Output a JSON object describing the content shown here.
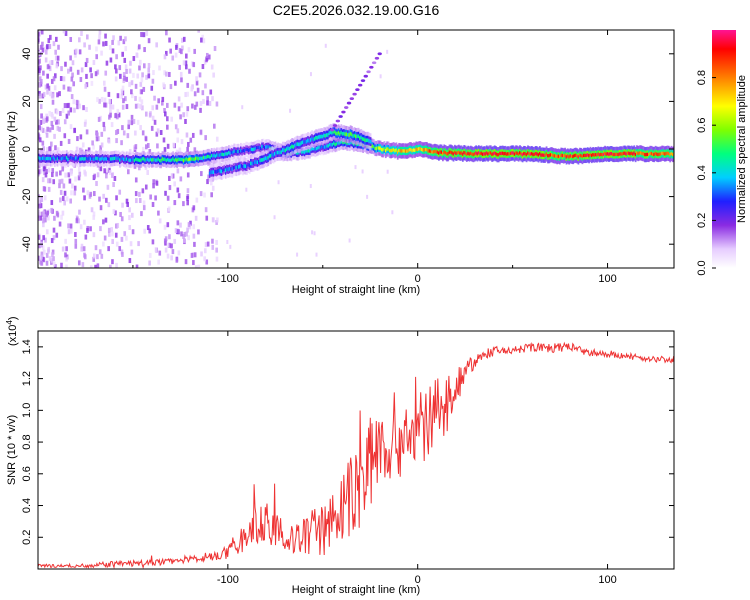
{
  "chart_data": [
    {
      "type": "heatmap",
      "title": "C2E5.2026.032.19.00.G16",
      "xlabel": "Height of straight line (km)",
      "ylabel": "Frequency (Hz)",
      "xlim": [
        -200,
        135
      ],
      "ylim": [
        -50,
        50
      ],
      "xticks": [
        -100,
        0,
        100
      ],
      "xtick_labels": [
        "-100",
        "0",
        "100"
      ],
      "yticks": [
        -40,
        -20,
        0,
        20,
        40
      ],
      "ytick_labels": [
        "-40",
        "-20",
        "0",
        "20",
        "40"
      ],
      "colorbar": {
        "label": "Normalized spectral amplitude",
        "range": [
          0,
          1
        ],
        "ticks": [
          0,
          0.2,
          0.4,
          0.6,
          0.8
        ],
        "tick_labels": [
          "0.0",
          "0.2",
          "0.4",
          "0.6",
          "0.8"
        ]
      },
      "ridge": [
        {
          "x": -195,
          "y": -4,
          "amp": 0.35
        },
        {
          "x": -180,
          "y": -4,
          "amp": 0.35
        },
        {
          "x": -165,
          "y": -4,
          "amp": 0.35
        },
        {
          "x": -150,
          "y": -4.5,
          "amp": 0.4
        },
        {
          "x": -135,
          "y": -4.5,
          "amp": 0.45
        },
        {
          "x": -120,
          "y": -4.5,
          "amp": 0.55
        },
        {
          "x": -108,
          "y": -3,
          "amp": 0.4
        },
        {
          "x": -95,
          "y": -1,
          "amp": 0.35
        },
        {
          "x": -80,
          "y": 1,
          "amp": 0.35
        },
        {
          "x": -70,
          "y": -2,
          "amp": 0.45
        },
        {
          "x": -60,
          "y": -1,
          "amp": 0.4
        },
        {
          "x": -50,
          "y": 1,
          "amp": 0.35
        },
        {
          "x": -40,
          "y": 3,
          "amp": 0.45
        },
        {
          "x": -30,
          "y": 2,
          "amp": 0.5
        },
        {
          "x": -20,
          "y": 0,
          "amp": 0.6
        },
        {
          "x": -10,
          "y": -1,
          "amp": 0.7
        },
        {
          "x": 0,
          "y": 0,
          "amp": 0.75
        },
        {
          "x": 10,
          "y": -1.5,
          "amp": 0.85
        },
        {
          "x": 30,
          "y": -2,
          "amp": 0.9
        },
        {
          "x": 60,
          "y": -2,
          "amp": 0.9
        },
        {
          "x": 75,
          "y": -3,
          "amp": 0.85
        },
        {
          "x": 85,
          "y": -3,
          "amp": 0.9
        },
        {
          "x": 100,
          "y": -2,
          "amp": 0.9
        },
        {
          "x": 120,
          "y": -2,
          "amp": 0.85
        },
        {
          "x": 135,
          "y": -2,
          "amp": 0.8
        }
      ],
      "branch": [
        {
          "x": -110,
          "y": -10,
          "amp": 0.3
        },
        {
          "x": -90,
          "y": -7,
          "amp": 0.35
        },
        {
          "x": -75,
          "y": -2,
          "amp": 0.4
        },
        {
          "x": -60,
          "y": 3,
          "amp": 0.4
        },
        {
          "x": -45,
          "y": 7,
          "amp": 0.45
        },
        {
          "x": -35,
          "y": 6,
          "amp": 0.5
        },
        {
          "x": -25,
          "y": 3,
          "amp": 0.4
        }
      ]
    },
    {
      "type": "line",
      "xlabel": "Height of straight line (km)",
      "ylabel": "SNR (10 * v/v)",
      "y_multiplier": "(x10",
      "y_multiplier_exp": "4",
      "y_multiplier_close": ")",
      "xlim": [
        -200,
        135
      ],
      "ylim": [
        0,
        1.5
      ],
      "xticks": [
        -100,
        0,
        100
      ],
      "xtick_labels": [
        "-100",
        "0",
        "100"
      ],
      "yticks": [
        0.2,
        0.4,
        0.6,
        0.8,
        1.0,
        1.2,
        1.4
      ],
      "ytick_labels": [
        "0.2",
        "0.4",
        "0.6",
        "0.8",
        "1.0",
        "1.2",
        "1.4"
      ],
      "color": "#ee3333",
      "series": [
        {
          "name": "SNR",
          "x": [
            -200,
            -180,
            -160,
            -140,
            -120,
            -110,
            -100,
            -95,
            -90,
            -85,
            -80,
            -75,
            -70,
            -65,
            -60,
            -55,
            -50,
            -45,
            -40,
            -35,
            -30,
            -25,
            -20,
            -15,
            -10,
            -5,
            0,
            5,
            10,
            15,
            20,
            25,
            30,
            35,
            40,
            50,
            60,
            70,
            80,
            90,
            100,
            110,
            120,
            130,
            135
          ],
          "values": [
            0.02,
            0.02,
            0.03,
            0.04,
            0.06,
            0.08,
            0.1,
            0.15,
            0.22,
            0.28,
            0.3,
            0.25,
            0.2,
            0.18,
            0.2,
            0.24,
            0.26,
            0.3,
            0.35,
            0.45,
            0.55,
            0.7,
            0.8,
            0.78,
            0.82,
            0.85,
            0.88,
            0.92,
            0.98,
            1.05,
            1.15,
            1.25,
            1.3,
            1.35,
            1.37,
            1.38,
            1.4,
            1.39,
            1.4,
            1.36,
            1.35,
            1.34,
            1.33,
            1.32,
            1.31
          ],
          "noise": [
            0.01,
            0.01,
            0.02,
            0.02,
            0.02,
            0.03,
            0.04,
            0.06,
            0.1,
            0.12,
            0.12,
            0.12,
            0.1,
            0.1,
            0.12,
            0.15,
            0.18,
            0.2,
            0.25,
            0.28,
            0.3,
            0.3,
            0.28,
            0.25,
            0.25,
            0.25,
            0.25,
            0.25,
            0.22,
            0.2,
            0.15,
            0.08,
            0.04,
            0.03,
            0.03,
            0.03,
            0.03,
            0.03,
            0.03,
            0.02,
            0.02,
            0.02,
            0.02,
            0.02,
            0.02
          ]
        }
      ]
    }
  ]
}
